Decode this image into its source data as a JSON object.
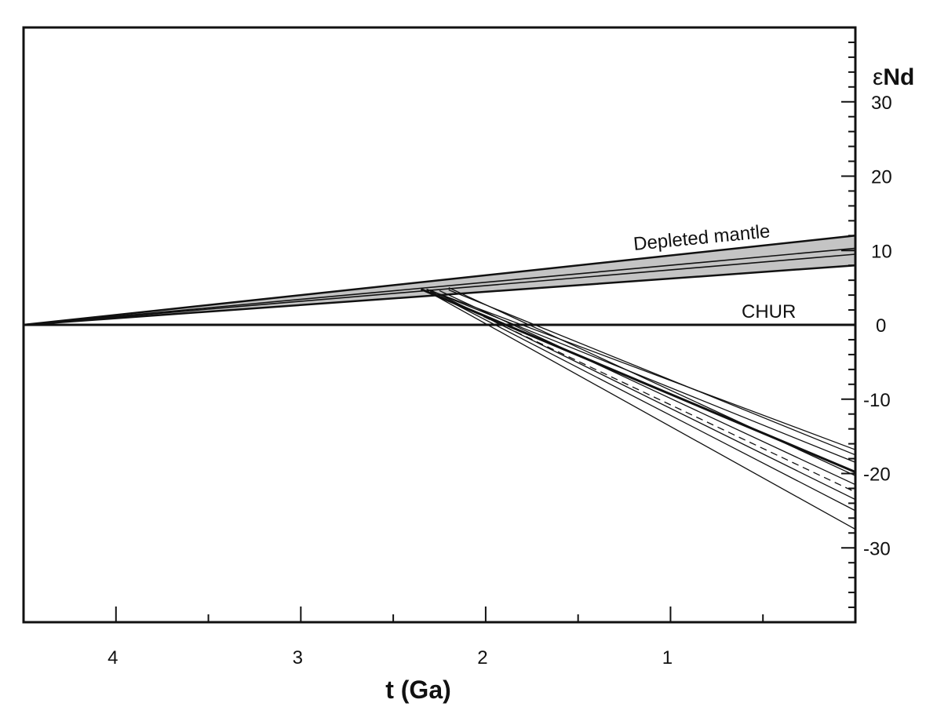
{
  "chart_data": {
    "type": "line",
    "title": "",
    "xlabel": "t (Ga)",
    "ylabel": "εNd",
    "ylabel_prefix": "ε",
    "ylabel_main": "Nd",
    "x_axis": "reversed",
    "xlim": [
      4.5,
      0
    ],
    "ylim": [
      -40,
      40
    ],
    "x_ticks": [
      4,
      3,
      2,
      1
    ],
    "y_ticks": [
      30,
      20,
      10,
      0,
      -10,
      -20,
      -30
    ],
    "y_axis_position": "right",
    "grid": false,
    "colors": {
      "line": "#111111",
      "band_fill": "#c4c4c4",
      "background": "#ffffff"
    },
    "annotations": {
      "depleted_mantle": "Depleted mantle",
      "chur": "CHUR"
    },
    "reference_lines": [
      {
        "name": "CHUR",
        "points": [
          [
            4.5,
            0
          ],
          [
            0,
            0
          ]
        ]
      }
    ],
    "depleted_mantle_band": [
      {
        "points": [
          [
            4.5,
            0
          ],
          [
            0,
            12
          ]
        ]
      },
      {
        "points": [
          [
            4.5,
            0
          ],
          [
            0,
            10.3
          ]
        ]
      },
      {
        "points": [
          [
            4.5,
            0
          ],
          [
            0,
            9.5
          ]
        ]
      },
      {
        "points": [
          [
            4.5,
            0
          ],
          [
            0,
            8
          ]
        ]
      }
    ],
    "series": [
      {
        "points": [
          [
            2.32,
            4.8
          ],
          [
            0,
            -16.8
          ]
        ],
        "style": "solid"
      },
      {
        "points": [
          [
            2.2,
            4.7
          ],
          [
            0,
            -17.5
          ]
        ],
        "style": "solid"
      },
      {
        "points": [
          [
            2.3,
            4.6
          ],
          [
            0,
            -18.5
          ]
        ],
        "style": "solid"
      },
      {
        "points": [
          [
            2.35,
            4.8
          ],
          [
            0,
            -19.8
          ]
        ],
        "style": "solid",
        "weight": "bold"
      },
      {
        "points": [
          [
            2.2,
            5.0
          ],
          [
            0,
            -20.3
          ]
        ],
        "style": "solid"
      },
      {
        "points": [
          [
            2.25,
            4.6
          ],
          [
            0,
            -21.5
          ]
        ],
        "style": "solid"
      },
      {
        "points": [
          [
            2.3,
            4.5
          ],
          [
            0,
            -22.5
          ]
        ],
        "style": "dashed"
      },
      {
        "points": [
          [
            2.3,
            4.7
          ],
          [
            0,
            -23.5
          ]
        ],
        "style": "solid"
      },
      {
        "points": [
          [
            2.3,
            4.5
          ],
          [
            0,
            -25.0
          ]
        ],
        "style": "solid"
      },
      {
        "points": [
          [
            2.3,
            4.3
          ],
          [
            0,
            -27.5
          ]
        ],
        "style": "solid"
      }
    ]
  }
}
